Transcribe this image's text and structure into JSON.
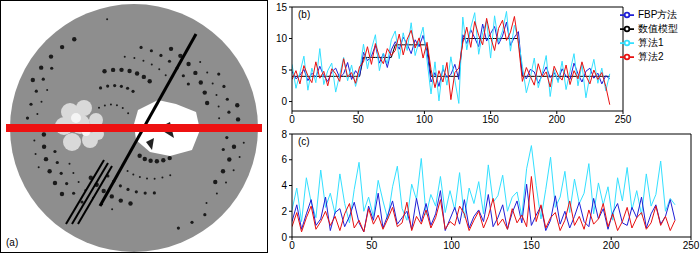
{
  "panel_a": {
    "label": "(a)"
  },
  "chart_data": [
    {
      "type": "line",
      "title": "(b)",
      "legend": "upper right",
      "x": [
        0,
        3,
        6,
        9,
        12,
        15,
        18,
        21,
        24,
        27,
        30,
        33,
        36,
        39,
        42,
        45,
        48,
        51,
        54,
        57,
        60,
        63,
        66,
        69,
        72,
        75,
        78,
        81,
        84,
        87,
        90,
        93,
        96,
        99,
        102,
        105,
        108,
        111,
        114,
        117,
        120,
        123,
        126,
        129,
        132,
        135,
        138,
        141,
        144,
        147,
        150,
        153,
        156,
        159,
        162,
        165,
        168,
        171,
        174,
        177,
        180,
        183,
        186,
        189,
        192,
        195,
        198,
        201,
        204,
        207,
        210,
        213,
        216,
        219,
        222,
        225,
        228,
        231,
        234,
        237,
        240
      ],
      "xlim": [
        0,
        250
      ],
      "xticks": [
        0,
        50,
        100,
        150,
        200,
        250
      ],
      "ylim": [
        -1.5,
        15
      ],
      "yticks": [
        0,
        5,
        10,
        15
      ],
      "series": [
        {
          "name": "数值模型",
          "color": "#000000",
          "values": [
            4,
            4,
            4,
            4,
            4,
            4,
            4,
            4,
            4,
            4,
            4,
            4,
            4,
            4,
            4,
            4,
            4,
            4,
            7,
            7,
            7,
            7,
            7,
            7,
            7,
            7,
            9,
            9,
            9,
            9,
            9,
            9,
            9,
            9,
            9,
            4,
            4,
            4,
            4,
            4,
            4,
            4,
            4,
            10,
            10,
            10,
            10,
            10,
            10,
            10,
            10,
            10,
            10,
            10,
            10,
            10,
            10,
            10,
            4,
            4,
            4,
            4,
            4,
            4,
            4,
            4,
            4,
            4,
            4,
            4,
            4,
            4,
            4,
            4,
            4,
            4,
            4,
            4,
            4,
            4,
            4
          ]
        },
        {
          "name": "FBP方法",
          "color": "#1f1fd6",
          "values": [
            4.8,
            3.6,
            4.2,
            5.1,
            3.3,
            4.5,
            3.9,
            5.6,
            4.1,
            3.2,
            4.7,
            5.3,
            3.8,
            4.4,
            6.2,
            3.5,
            4.9,
            4.0,
            7.8,
            6.5,
            7.2,
            8.9,
            6.1,
            7.6,
            5.4,
            8.2,
            9.5,
            8.3,
            10.2,
            9.1,
            7.6,
            9.8,
            8.7,
            10.5,
            7.9,
            3.1,
            4.6,
            2.4,
            5.2,
            3.8,
            4.3,
            5.9,
            3.5,
            10.6,
            9.2,
            11.4,
            10.1,
            8.7,
            12.3,
            9.6,
            10.8,
            11.9,
            9.1,
            10.4,
            12.6,
            8.9,
            10.2,
            11.1,
            4.3,
            3.6,
            5.1,
            4.7,
            2.9,
            4.2,
            5.5,
            3.8,
            4.6,
            3.3,
            5.2,
            4.0,
            3.5,
            6.1,
            4.4,
            3.1,
            4.8,
            5.3,
            3.7,
            4.5,
            2.8,
            4.1,
            3.6
          ]
        },
        {
          "name": "算法1",
          "color": "#33e0ff",
          "values": [
            5.9,
            2.1,
            4.6,
            7.2,
            1.8,
            5.3,
            3.0,
            8.4,
            2.7,
            4.9,
            6.1,
            1.5,
            4.2,
            7.0,
            3.3,
            5.8,
            2.4,
            4.7,
            9.1,
            5.2,
            8.3,
            10.6,
            4.9,
            7.7,
            6.0,
            9.8,
            11.2,
            6.8,
            10.9,
            8.1,
            12.5,
            7.3,
            9.6,
            11.8,
            6.5,
            1.2,
            6.3,
            0.1,
            5.8,
            2.6,
            7.1,
            3.4,
            -0.3,
            13.4,
            8.2,
            11.7,
            14.1,
            7.5,
            10.9,
            12.8,
            6.9,
            13.6,
            9.4,
            11.2,
            14.3,
            8.0,
            12.1,
            9.9,
            5.6,
            1.4,
            3.8,
            6.9,
            2.2,
            4.5,
            7.3,
            0.8,
            5.1,
            3.0,
            6.4,
            1.9,
            4.8,
            7.6,
            2.5,
            5.9,
            0.6,
            4.1,
            6.7,
            2.9,
            5.3,
            1.7,
            4.4
          ]
        },
        {
          "name": "算法2",
          "color": "#e81010",
          "values": [
            3.5,
            4.9,
            2.8,
            5.7,
            4.1,
            3.0,
            6.3,
            3.7,
            4.8,
            2.5,
            5.2,
            4.4,
            3.2,
            6.8,
            3.9,
            4.6,
            2.9,
            5.5,
            6.3,
            8.7,
            5.9,
            9.2,
            7.1,
            6.0,
            8.4,
            7.3,
            8.1,
            10.7,
            7.4,
            9.9,
            11.3,
            8.5,
            10.1,
            6.9,
            9.4,
            5.1,
            2.2,
            4.9,
            3.1,
            6.2,
            0.3,
            4.6,
            5.3,
            9.3,
            11.8,
            8.6,
            12.7,
            10.5,
            9.0,
            13.2,
            10.2,
            8.1,
            11.6,
            12.9,
            9.7,
            11.0,
            13.5,
            9.2,
            3.2,
            5.4,
            4.0,
            2.6,
            6.0,
            3.9,
            4.7,
            2.3,
            5.6,
            4.2,
            3.4,
            5.8,
            2.7,
            4.9,
            3.6,
            6.3,
            4.1,
            2.8,
            5.0,
            3.5,
            4.6,
            2.4,
            -0.5
          ]
        }
      ]
    },
    {
      "type": "line",
      "title": "(c)",
      "x": [
        0,
        3,
        6,
        9,
        12,
        15,
        18,
        21,
        24,
        27,
        30,
        33,
        36,
        39,
        42,
        45,
        48,
        51,
        54,
        57,
        60,
        63,
        66,
        69,
        72,
        75,
        78,
        81,
        84,
        87,
        90,
        93,
        96,
        99,
        102,
        105,
        108,
        111,
        114,
        117,
        120,
        123,
        126,
        129,
        132,
        135,
        138,
        141,
        144,
        147,
        150,
        153,
        156,
        159,
        162,
        165,
        168,
        171,
        174,
        177,
        180,
        183,
        186,
        189,
        192,
        195,
        198,
        201,
        204,
        207,
        210,
        213,
        216,
        219,
        222,
        225,
        228,
        231,
        234,
        237,
        240
      ],
      "xlim": [
        0,
        250
      ],
      "xticks": [
        0,
        50,
        100,
        150,
        200,
        250
      ],
      "ylim": [
        0,
        8
      ],
      "yticks": [
        0,
        2,
        4,
        6,
        8
      ],
      "series": [
        {
          "color": "#33e0ff",
          "values": [
            2.1,
            3.8,
            1.2,
            4.6,
            2.7,
            1.5,
            5.2,
            2.3,
            3.4,
            1.8,
            4.9,
            2.6,
            1.1,
            3.7,
            5.8,
            2.0,
            3.1,
            1.6,
            4.4,
            2.8,
            1.4,
            3.9,
            5.5,
            2.2,
            1.3,
            4.1,
            2.9,
            6.1,
            1.7,
            3.3,
            2.4,
            4.7,
            1.9,
            3.6,
            2.1,
            5.0,
            1.5,
            3.8,
            2.6,
            4.3,
            1.8,
            5.6,
            2.7,
            3.2,
            4.8,
            2.0,
            3.1,
            3.5,
            1.6,
            5.3,
            7.1,
            4.0,
            1.4,
            3.7,
            6.2,
            2.3,
            3.1,
            5.1,
            1.9,
            4.5,
            2.6,
            3.4,
            5.7,
            1.8,
            4.2,
            2.5,
            3.9,
            1.3,
            4.6,
            2.8,
            5.4,
            2.1,
            3.6,
            1.7,
            4.9,
            2.4,
            3.3,
            5.9,
            2.0,
            3.0,
            2.5
          ]
        },
        {
          "color": "#1f1fd6",
          "values": [
            1.2,
            2.5,
            0.6,
            1.8,
            2.9,
            0.9,
            1.4,
            3.1,
            0.5,
            1.9,
            2.2,
            0.8,
            1.6,
            2.7,
            1.1,
            0.4,
            2.4,
            1.3,
            3.4,
            0.7,
            1.7,
            2.8,
            1.0,
            1.5,
            2.0,
            0.6,
            3.0,
            1.2,
            2.6,
            0.9,
            1.8,
            3.6,
            0.5,
            1.4,
            2.3,
            1.0,
            2.9,
            0.7,
            1.6,
            2.1,
            1.2,
            3.3,
            0.8,
            1.5,
            2.5,
            0.6,
            1.9,
            2.8,
            1.1,
            4.1,
            0.9,
            1.7,
            2.4,
            0.5,
            1.3,
            3.2,
            1.0,
            2.0,
            0.7,
            1.6,
            2.7,
            1.2,
            0.8,
            3.0,
            1.4,
            2.2,
            0.6,
            1.9,
            2.6,
            1.1,
            0.9,
            2.3,
            1.5,
            3.1,
            0.7,
            1.8,
            2.5,
            1.0,
            1.6,
            2.9,
            1.3
          ]
        },
        {
          "color": "#e81010",
          "values": [
            0.8,
            1.9,
            0.4,
            1.5,
            2.4,
            0.6,
            1.2,
            2.0,
            0.9,
            1.6,
            0.5,
            1.8,
            2.6,
            0.7,
            1.3,
            0.4,
            2.2,
            1.0,
            1.7,
            0.6,
            1.4,
            2.3,
            0.8,
            1.1,
            2.7,
            0.5,
            1.6,
            1.0,
            2.1,
            0.7,
            1.5,
            2.9,
            0.6,
            1.2,
            0.9,
            2.4,
            1.8,
            0.5,
            1.3,
            2.0,
            0.7,
            1.6,
            3.0,
            0.9,
            1.4,
            0.6,
            2.2,
            1.1,
            1.7,
            0.8,
            4.7,
            1.2,
            2.5,
            0.7,
            1.5,
            1.9,
            0.5,
            1.3,
            2.8,
            0.9,
            1.6,
            0.6,
            2.1,
            1.0,
            1.4,
            2.6,
            0.8,
            1.8,
            0.5,
            1.2,
            2.3,
            0.7,
            1.5,
            1.9,
            0.6,
            1.1,
            2.4,
            0.9,
            1.6,
            0.5,
            1.3
          ]
        }
      ]
    }
  ]
}
